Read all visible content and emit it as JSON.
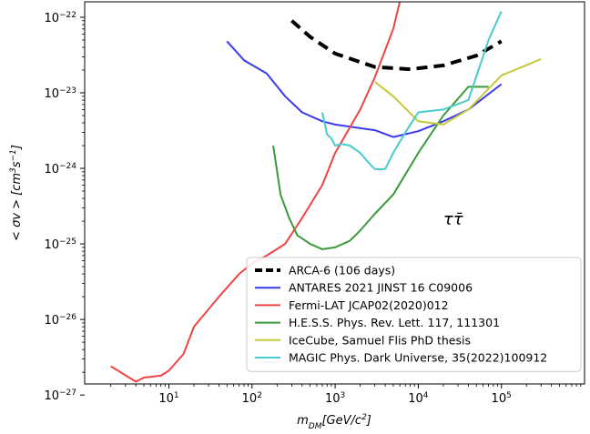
{
  "chart_data": {
    "type": "line",
    "xscale": "log",
    "yscale": "log",
    "xlim": [
      0.97,
      1000000
    ],
    "ylim": [
      1.4e-27,
      1.6e-22
    ],
    "xlabel_html": "m<tspan baseline-shift=\"sub\" font-size=\"9\">DM</tspan>[GeV/c<tspan baseline-shift=\"super\" font-size=\"9\">2</tspan>]",
    "ylabel_html": "< σv > [cm<tspan baseline-shift=\"super\" font-size=\"9\">3</tspan>s<tspan baseline-shift=\"super\" font-size=\"9\">−1</tspan>]",
    "x_ticks": [
      {
        "value": 10,
        "base": "10",
        "exp": "1"
      },
      {
        "value": 100,
        "base": "10",
        "exp": "2"
      },
      {
        "value": 1000,
        "base": "10",
        "exp": "3"
      },
      {
        "value": 10000,
        "base": "10",
        "exp": "4"
      },
      {
        "value": 100000,
        "base": "10",
        "exp": "5"
      }
    ],
    "y_ticks": [
      {
        "value": 1e-27,
        "base": "10",
        "exp": "−27"
      },
      {
        "value": 1e-26,
        "base": "10",
        "exp": "−26"
      },
      {
        "value": 1e-25,
        "base": "10",
        "exp": "−25"
      },
      {
        "value": 1e-24,
        "base": "10",
        "exp": "−24"
      },
      {
        "value": 1e-23,
        "base": "10",
        "exp": "−23"
      },
      {
        "value": 1e-22,
        "base": "10",
        "exp": "−22"
      }
    ],
    "annotation": "ττ̄",
    "annotation_value": {
      "x": 20000,
      "y": 1.8e-25
    },
    "legend_position": "lower-right",
    "series": [
      {
        "name": "ARCA-6 (106 days)",
        "color": "#000000",
        "dashed": true,
        "width": 4,
        "x": [
          300,
          500,
          1000,
          3000,
          8000,
          20000,
          50000,
          100000
        ],
        "y": [
          9e-23,
          5.5e-23,
          3.3e-23,
          2.2e-23,
          2.05e-23,
          2.3e-23,
          3.1e-23,
          4.8e-23
        ]
      },
      {
        "name": "ANTARES 2021 JINST 16 C09006",
        "color": "#3a3aee",
        "dashed": false,
        "width": 2,
        "x": [
          50,
          80,
          150,
          250,
          400,
          700,
          1000,
          2000,
          3000,
          5000,
          10000,
          20000,
          40000,
          100000
        ],
        "y": [
          4.8e-23,
          2.7e-23,
          1.8e-23,
          9e-24,
          5.5e-24,
          4.2e-24,
          3.8e-24,
          3.4e-24,
          3.2e-24,
          2.6e-24,
          3.1e-24,
          4.2e-24,
          6e-24,
          1.3e-23
        ]
      },
      {
        "name": "Fermi-LAT JCAP02(2020)012",
        "color": "#ee4444",
        "dashed": false,
        "width": 2,
        "x": [
          2,
          4,
          5,
          8,
          10,
          15,
          20,
          40,
          70,
          100,
          150,
          250,
          400,
          700,
          1000,
          2000,
          3000,
          5000,
          8000
        ],
        "y": [
          2.4e-27,
          1.5e-27,
          1.7e-27,
          1.8e-27,
          2.1e-27,
          3.5e-27,
          8e-27,
          2e-26,
          4e-26,
          5.5e-26,
          7e-26,
          1e-25,
          2.2e-25,
          6e-25,
          1.6e-24,
          6e-24,
          1.6e-23,
          7e-23,
          6e-22
        ]
      },
      {
        "name": "H.E.S.S. Phys. Rev. Lett. 117, 111301",
        "color": "#3a9a3a",
        "dashed": false,
        "width": 2,
        "x": [
          180,
          220,
          280,
          350,
          500,
          700,
          1000,
          1500,
          2000,
          3000,
          5000,
          10000,
          20000,
          40000,
          70000
        ],
        "y": [
          2e-24,
          4.5e-25,
          2.2e-25,
          1.3e-25,
          1e-25,
          8.5e-26,
          9e-26,
          1.1e-25,
          1.5e-25,
          2.5e-25,
          4.5e-25,
          1.6e-24,
          5e-24,
          1.2e-23,
          1.2e-23
        ]
      },
      {
        "name": "IceCube, Samuel Flis PhD thesis",
        "color": "#c8c83a",
        "dashed": false,
        "width": 2,
        "x": [
          3000,
          5000,
          10000,
          20000,
          40000,
          100000,
          300000
        ],
        "y": [
          1.4e-23,
          9e-24,
          4.2e-24,
          3.8e-24,
          6e-24,
          1.7e-23,
          2.8e-23
        ]
      },
      {
        "name": "MAGIC Phys. Dark Universe, 35(2022)100912",
        "color": "#4acaca",
        "dashed": false,
        "width": 2,
        "x": [
          700,
          800,
          900,
          1000,
          1200,
          1500,
          2000,
          2500,
          3000,
          3500,
          4000,
          5000,
          7000,
          10000,
          20000,
          40000,
          70000,
          100000
        ],
        "y": [
          5.5e-24,
          2.8e-24,
          2.5e-24,
          2e-24,
          2.1e-24,
          2e-24,
          1.6e-24,
          1.2e-24,
          9.8e-25,
          9.7e-25,
          9.8e-25,
          1.6e-24,
          3e-24,
          5.5e-24,
          6e-24,
          8e-24,
          5e-23,
          1.2e-22
        ]
      }
    ]
  }
}
